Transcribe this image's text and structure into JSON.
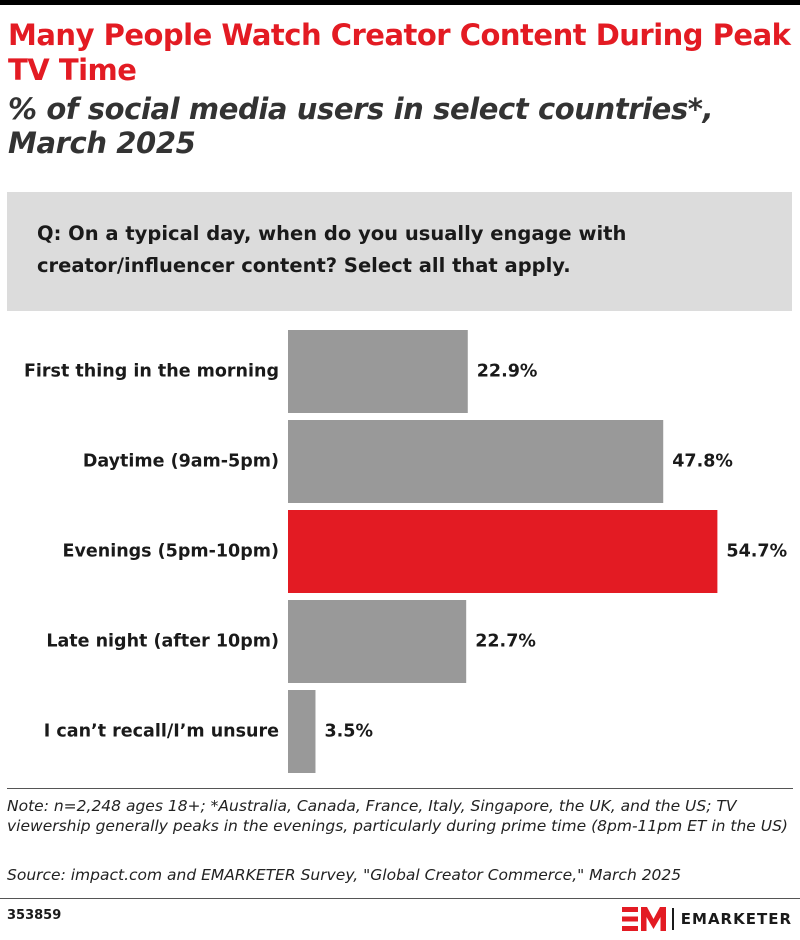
{
  "header": {
    "title": "Many People Watch Creator Content During Peak TV Time",
    "subtitle": "% of social media users in select countries*, March 2025"
  },
  "question": "Q: On a typical day, when do you usually engage with creator/influencer content? Select all that apply.",
  "colors": {
    "accent": "#e31b23",
    "bar_default": "#999999",
    "bar_highlight": "#e31b23",
    "question_bg": "#dcdcdc"
  },
  "chart_data": {
    "type": "bar",
    "orientation": "horizontal",
    "categories": [
      "First thing in the morning",
      "Daytime (9am-5pm)",
      "Evenings (5pm-10pm)",
      "Late night (after 10pm)",
      "I can’t recall/I’m unsure"
    ],
    "values": [
      22.9,
      47.8,
      54.7,
      22.7,
      3.5
    ],
    "value_labels": [
      "22.9%",
      "47.8%",
      "54.7%",
      "22.7%",
      "3.5%"
    ],
    "highlight_index": 2,
    "grid": false,
    "legend": "none"
  },
  "footer": {
    "note": "Note: n=2,248 ages 18+; *Australia, Canada, France, Italy, Singapore, the UK, and the US; TV viewership generally peaks in the evenings, particularly during prime time (8pm-11pm ET in the US)",
    "source": "Source: impact.com and EMARKETER Survey, \"Global Creator Commerce,\" March 2025",
    "chart_id": "353859",
    "brand_name": "EMARKETER",
    "brand_logo_icon": "em-logo-icon"
  }
}
